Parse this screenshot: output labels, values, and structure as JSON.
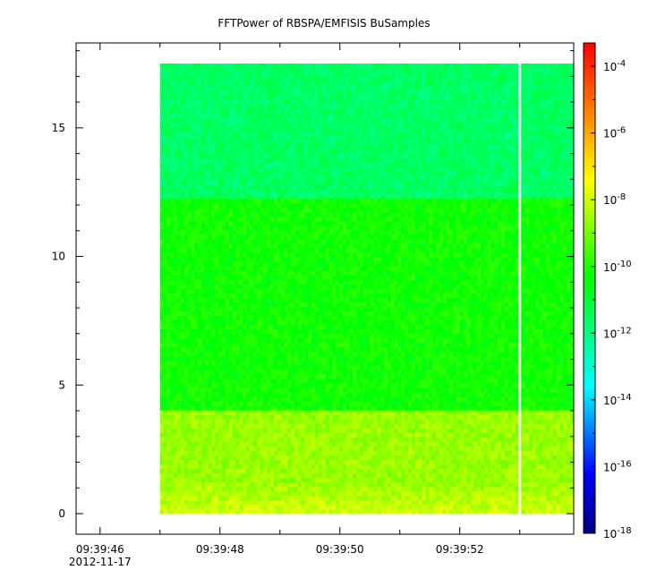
{
  "chart_data": {
    "type": "heatmap",
    "title": "FFTPower of RBSPA/EMFISIS  BuSamples",
    "xlabel": "",
    "ylabel": "",
    "x_ticks": [
      {
        "label": "09:39:46",
        "sublabel": "2012-11-17",
        "t": 46
      },
      {
        "label": "09:39:48",
        "t": 48
      },
      {
        "label": "09:39:50",
        "t": 50
      },
      {
        "label": "09:39:52",
        "t": 52
      }
    ],
    "xlim": [
      45.6,
      53.9
    ],
    "ylim": [
      -0.8,
      18.3
    ],
    "y_ticks": [
      0,
      5,
      10,
      15
    ],
    "data_extent": {
      "t_start": 47.0,
      "t_end": 53.9,
      "f_min": 0,
      "f_max": 17.5
    },
    "data_gap_t": 53.0,
    "bands": [
      {
        "f_from": 0.0,
        "f_to": 4.0,
        "log_power": -8.6
      },
      {
        "f_from": 4.0,
        "f_to": 12.3,
        "log_power": -10.2
      },
      {
        "f_from": 12.3,
        "f_to": 17.5,
        "log_power": -11.6
      }
    ],
    "colorbar": {
      "scale": "log",
      "range_exp": [
        -18,
        -3.3
      ],
      "tick_labels": [
        {
          "base": "10",
          "exp": "-4",
          "v": -4
        },
        {
          "base": "10",
          "exp": "-6",
          "v": -6
        },
        {
          "base": "10",
          "exp": "-8",
          "v": -8
        },
        {
          "base": "10",
          "exp": "-10",
          "v": -10
        },
        {
          "base": "10",
          "exp": "-12",
          "v": -12
        },
        {
          "base": "10",
          "exp": "-14",
          "v": -14
        },
        {
          "base": "10",
          "exp": "-16",
          "v": -16
        },
        {
          "base": "10",
          "exp": "-18",
          "v": -18
        }
      ],
      "colors": [
        "#000080",
        "#0000ff",
        "#00ffff",
        "#00ff00",
        "#ffff00",
        "#ff8000",
        "#ff0000"
      ]
    }
  }
}
